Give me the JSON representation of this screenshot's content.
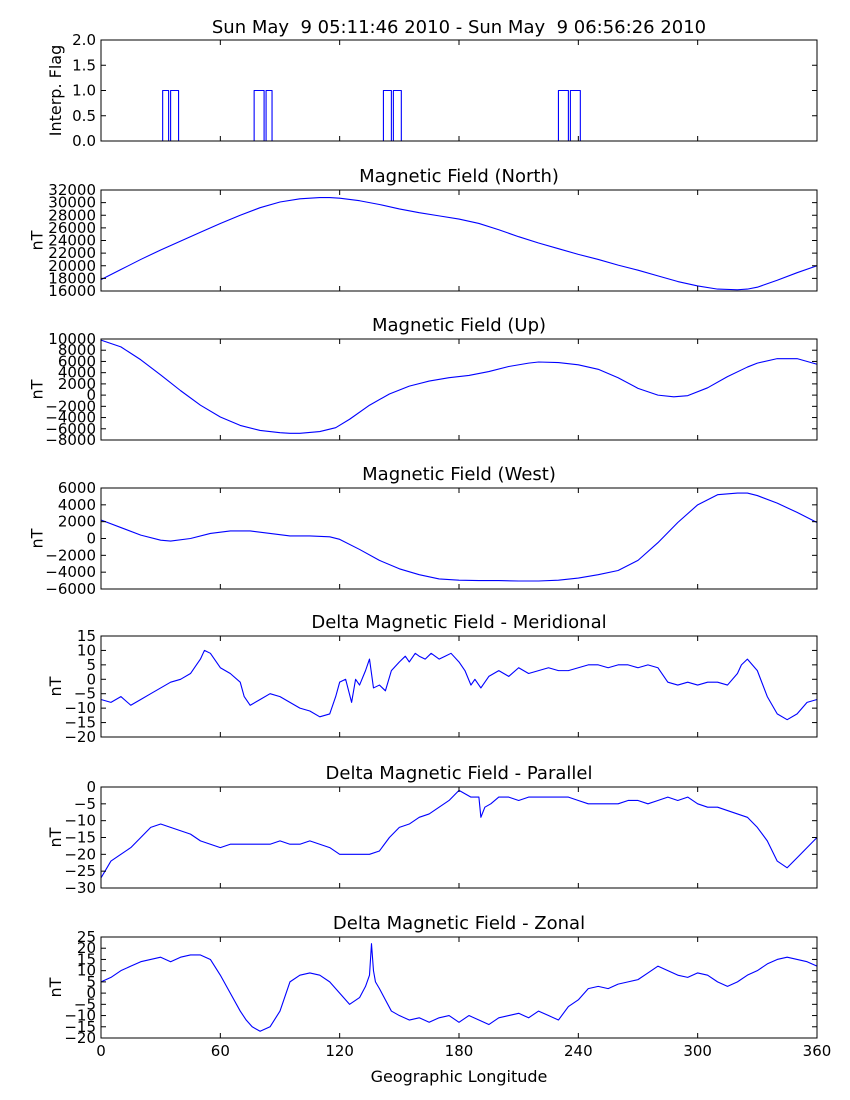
{
  "figure_title": "Sun May  9 05:11:46 2010 - Sun May  9 06:56:26 2010",
  "chart_data": [
    {
      "type": "line",
      "title": "",
      "ylabel": "Interp. Flag",
      "ylim": [
        0,
        2
      ],
      "yticks": [
        "0.0",
        "0.5",
        "1.0",
        "1.5",
        "2.0"
      ],
      "ytick_values": [
        0,
        0.5,
        1,
        1.5,
        2
      ],
      "color": "#0000ff",
      "x": [
        0,
        31,
        31,
        34,
        34,
        35,
        35,
        39,
        39,
        77,
        77,
        82,
        82,
        83,
        83,
        86,
        86,
        142,
        142,
        146,
        146,
        147,
        147,
        151,
        151,
        230,
        230,
        235,
        235,
        236,
        236,
        241,
        241,
        360
      ],
      "y": [
        0,
        0,
        1,
        1,
        0,
        0,
        1,
        1,
        0,
        0,
        1,
        1,
        0,
        0,
        1,
        1,
        0,
        0,
        1,
        1,
        0,
        0,
        1,
        1,
        0,
        0,
        1,
        1,
        0,
        0,
        1,
        1,
        0,
        0
      ]
    },
    {
      "type": "line",
      "title": "Magnetic Field (North)",
      "ylabel": "nT",
      "ylim": [
        16000,
        32000
      ],
      "yticks": [
        "16000",
        "18000",
        "20000",
        "22000",
        "24000",
        "26000",
        "28000",
        "30000",
        "32000"
      ],
      "ytick_values": [
        16000,
        18000,
        20000,
        22000,
        24000,
        26000,
        28000,
        30000,
        32000
      ],
      "color": "#0000ff",
      "x": [
        0,
        10,
        20,
        30,
        40,
        50,
        60,
        70,
        80,
        90,
        100,
        110,
        115,
        120,
        130,
        140,
        150,
        160,
        170,
        180,
        190,
        200,
        210,
        220,
        230,
        240,
        250,
        260,
        270,
        280,
        290,
        300,
        310,
        320,
        325,
        330,
        340,
        350,
        360
      ],
      "y": [
        17800,
        19400,
        21000,
        22500,
        23900,
        25300,
        26700,
        28000,
        29200,
        30100,
        30600,
        30800,
        30800,
        30700,
        30300,
        29700,
        29000,
        28400,
        27900,
        27400,
        26700,
        25700,
        24600,
        23600,
        22700,
        21800,
        21000,
        20100,
        19300,
        18400,
        17500,
        16800,
        16300,
        16200,
        16300,
        16600,
        17700,
        18900,
        20000
      ]
    },
    {
      "type": "line",
      "title": "Magnetic Field (Up)",
      "ylabel": "nT",
      "ylim": [
        -8000,
        10000
      ],
      "yticks": [
        "−8000",
        "−6000",
        "−4000",
        "−2000",
        "0",
        "2000",
        "4000",
        "6000",
        "8000",
        "10000"
      ],
      "ytick_values": [
        -8000,
        -6000,
        -4000,
        -2000,
        0,
        2000,
        4000,
        6000,
        8000,
        10000
      ],
      "color": "#0000ff",
      "x": [
        0,
        10,
        20,
        30,
        40,
        50,
        60,
        70,
        80,
        90,
        95,
        100,
        110,
        118,
        125,
        135,
        145,
        155,
        165,
        175,
        185,
        195,
        205,
        215,
        220,
        230,
        240,
        250,
        260,
        270,
        280,
        288,
        295,
        305,
        315,
        325,
        330,
        340,
        350,
        360
      ],
      "y": [
        9800,
        8600,
        6300,
        3600,
        800,
        -1800,
        -3900,
        -5400,
        -6300,
        -6700,
        -6800,
        -6800,
        -6500,
        -5800,
        -4300,
        -1800,
        200,
        1600,
        2500,
        3100,
        3500,
        4200,
        5100,
        5700,
        5900,
        5800,
        5400,
        4600,
        3100,
        1200,
        0,
        -300,
        -100,
        1300,
        3300,
        5000,
        5700,
        6500,
        6500,
        5500
      ]
    },
    {
      "type": "line",
      "title": "Magnetic Field (West)",
      "ylabel": "nT",
      "ylim": [
        -6000,
        6000
      ],
      "yticks": [
        "−6000",
        "−4000",
        "−2000",
        "0",
        "2000",
        "4000",
        "6000"
      ],
      "ytick_values": [
        -6000,
        -4000,
        -2000,
        0,
        2000,
        4000,
        6000
      ],
      "color": "#0000ff",
      "x": [
        0,
        10,
        20,
        30,
        35,
        45,
        55,
        65,
        75,
        85,
        95,
        105,
        115,
        120,
        130,
        140,
        150,
        160,
        170,
        180,
        190,
        200,
        210,
        220,
        230,
        240,
        250,
        260,
        270,
        280,
        290,
        300,
        310,
        320,
        325,
        330,
        340,
        350,
        360
      ],
      "y": [
        2200,
        1300,
        400,
        -200,
        -300,
        0,
        600,
        900,
        900,
        600,
        300,
        300,
        200,
        -100,
        -1300,
        -2600,
        -3600,
        -4300,
        -4800,
        -4950,
        -5000,
        -5000,
        -5050,
        -5050,
        -4950,
        -4700,
        -4300,
        -3800,
        -2600,
        -500,
        1900,
        4000,
        5200,
        5400,
        5400,
        5100,
        4200,
        3100,
        1900
      ]
    },
    {
      "type": "line",
      "title": "Delta Magnetic Field - Meridional",
      "ylabel": "nT",
      "ylim": [
        -20,
        15
      ],
      "yticks": [
        "−20",
        "−15",
        "−10",
        "−5",
        "0",
        "5",
        "10",
        "15"
      ],
      "ytick_values": [
        -20,
        -15,
        -10,
        -5,
        0,
        5,
        10,
        15
      ],
      "color": "#0000ff",
      "x": [
        0,
        5,
        10,
        15,
        20,
        25,
        30,
        35,
        40,
        45,
        48,
        50,
        52,
        55,
        60,
        65,
        70,
        72,
        75,
        80,
        85,
        90,
        95,
        100,
        105,
        110,
        115,
        118,
        120,
        123,
        126,
        128,
        130,
        133,
        135,
        137,
        140,
        143,
        146,
        150,
        153,
        155,
        158,
        160,
        163,
        166,
        170,
        173,
        176,
        180,
        183,
        186,
        188,
        191,
        195,
        200,
        205,
        210,
        215,
        220,
        225,
        230,
        235,
        240,
        245,
        250,
        255,
        260,
        265,
        270,
        275,
        280,
        285,
        290,
        295,
        300,
        305,
        310,
        315,
        320,
        322,
        325,
        330,
        335,
        340,
        345,
        350,
        355,
        360
      ],
      "y": [
        -7,
        -8,
        -6,
        -9,
        -7,
        -5,
        -3,
        -1,
        0,
        2,
        5,
        7,
        10,
        9,
        4,
        2,
        -1,
        -6,
        -9,
        -7,
        -5,
        -6,
        -8,
        -10,
        -11,
        -13,
        -12,
        -6,
        -1,
        0,
        -8,
        0,
        -2,
        3,
        7,
        -3,
        -2,
        -4,
        3,
        6,
        8,
        6,
        9,
        8,
        7,
        9,
        7,
        8,
        9,
        6,
        3,
        -2,
        0,
        -3,
        1,
        3,
        1,
        4,
        2,
        3,
        4,
        3,
        3,
        4,
        5,
        5,
        4,
        5,
        5,
        4,
        5,
        4,
        -1,
        -2,
        -1,
        -2,
        -1,
        -1,
        -2,
        2,
        5,
        7,
        3,
        -6,
        -12,
        -14,
        -12,
        -8,
        -7
      ]
    },
    {
      "type": "line",
      "title": "Delta Magnetic Field - Parallel",
      "ylabel": "nT",
      "ylim": [
        -30,
        0
      ],
      "yticks": [
        "−30",
        "−25",
        "−20",
        "−15",
        "−10",
        "−5",
        "0"
      ],
      "ytick_values": [
        -30,
        -25,
        -20,
        -15,
        -10,
        -5,
        0
      ],
      "color": "#0000ff",
      "x": [
        0,
        2,
        5,
        10,
        15,
        20,
        25,
        30,
        35,
        40,
        45,
        50,
        55,
        60,
        65,
        70,
        75,
        80,
        85,
        90,
        95,
        100,
        105,
        110,
        115,
        120,
        125,
        130,
        135,
        140,
        145,
        150,
        155,
        160,
        165,
        170,
        175,
        180,
        183,
        186,
        190,
        191,
        193,
        196,
        200,
        205,
        210,
        215,
        220,
        225,
        230,
        235,
        240,
        245,
        250,
        255,
        260,
        265,
        270,
        275,
        280,
        285,
        290,
        295,
        300,
        305,
        310,
        315,
        320,
        325,
        330,
        335,
        340,
        345,
        350,
        355,
        360
      ],
      "y": [
        -27,
        -25,
        -22,
        -20,
        -18,
        -15,
        -12,
        -11,
        -12,
        -13,
        -14,
        -16,
        -17,
        -18,
        -17,
        -17,
        -17,
        -17,
        -17,
        -16,
        -17,
        -17,
        -16,
        -17,
        -18,
        -20,
        -20,
        -20,
        -20,
        -19,
        -15,
        -12,
        -11,
        -9,
        -8,
        -6,
        -4,
        -1,
        -2,
        -3,
        -3,
        -9,
        -6,
        -5,
        -3,
        -3,
        -4,
        -3,
        -3,
        -3,
        -3,
        -3,
        -4,
        -5,
        -5,
        -5,
        -5,
        -4,
        -4,
        -5,
        -4,
        -3,
        -4,
        -3,
        -5,
        -6,
        -6,
        -7,
        -8,
        -9,
        -12,
        -16,
        -22,
        -24,
        -21,
        -18,
        -15
      ]
    },
    {
      "type": "line",
      "title": "Delta Magnetic Field - Zonal",
      "ylabel": "nT",
      "ylim": [
        -20,
        25
      ],
      "yticks": [
        "−20",
        "−15",
        "−10",
        "−5",
        "0",
        "5",
        "10",
        "15",
        "20",
        "25"
      ],
      "ytick_values": [
        -20,
        -15,
        -10,
        -5,
        0,
        5,
        10,
        15,
        20,
        25
      ],
      "color": "#0000ff",
      "x": [
        0,
        5,
        10,
        15,
        20,
        25,
        30,
        35,
        40,
        45,
        50,
        55,
        60,
        65,
        70,
        73,
        76,
        80,
        85,
        90,
        95,
        100,
        105,
        110,
        115,
        120,
        125,
        130,
        133,
        135,
        136,
        137,
        138,
        140,
        143,
        146,
        150,
        155,
        160,
        165,
        170,
        175,
        180,
        185,
        190,
        195,
        200,
        205,
        210,
        215,
        220,
        225,
        230,
        235,
        240,
        245,
        250,
        255,
        260,
        265,
        270,
        275,
        280,
        285,
        290,
        295,
        300,
        305,
        310,
        315,
        320,
        325,
        330,
        335,
        340,
        345,
        350,
        355,
        360
      ],
      "y": [
        5,
        7,
        10,
        12,
        14,
        15,
        16,
        14,
        16,
        17,
        17,
        15,
        8,
        0,
        -8,
        -12,
        -15,
        -17,
        -15,
        -8,
        5,
        8,
        9,
        8,
        5,
        0,
        -5,
        -2,
        3,
        8,
        22,
        10,
        5,
        2,
        -3,
        -8,
        -10,
        -12,
        -11,
        -13,
        -11,
        -10,
        -13,
        -10,
        -12,
        -14,
        -11,
        -10,
        -9,
        -11,
        -8,
        -10,
        -12,
        -6,
        -3,
        2,
        3,
        2,
        4,
        5,
        6,
        9,
        12,
        10,
        8,
        7,
        9,
        8,
        5,
        3,
        5,
        8,
        10,
        13,
        15,
        16,
        15,
        14,
        12
      ]
    }
  ],
  "x_axis": {
    "label": "Geographic Longitude",
    "xlim": [
      0,
      360
    ],
    "ticks": [
      "0",
      "60",
      "120",
      "180",
      "240",
      "300",
      "360"
    ],
    "tick_values": [
      0,
      60,
      120,
      180,
      240,
      300,
      360
    ]
  }
}
